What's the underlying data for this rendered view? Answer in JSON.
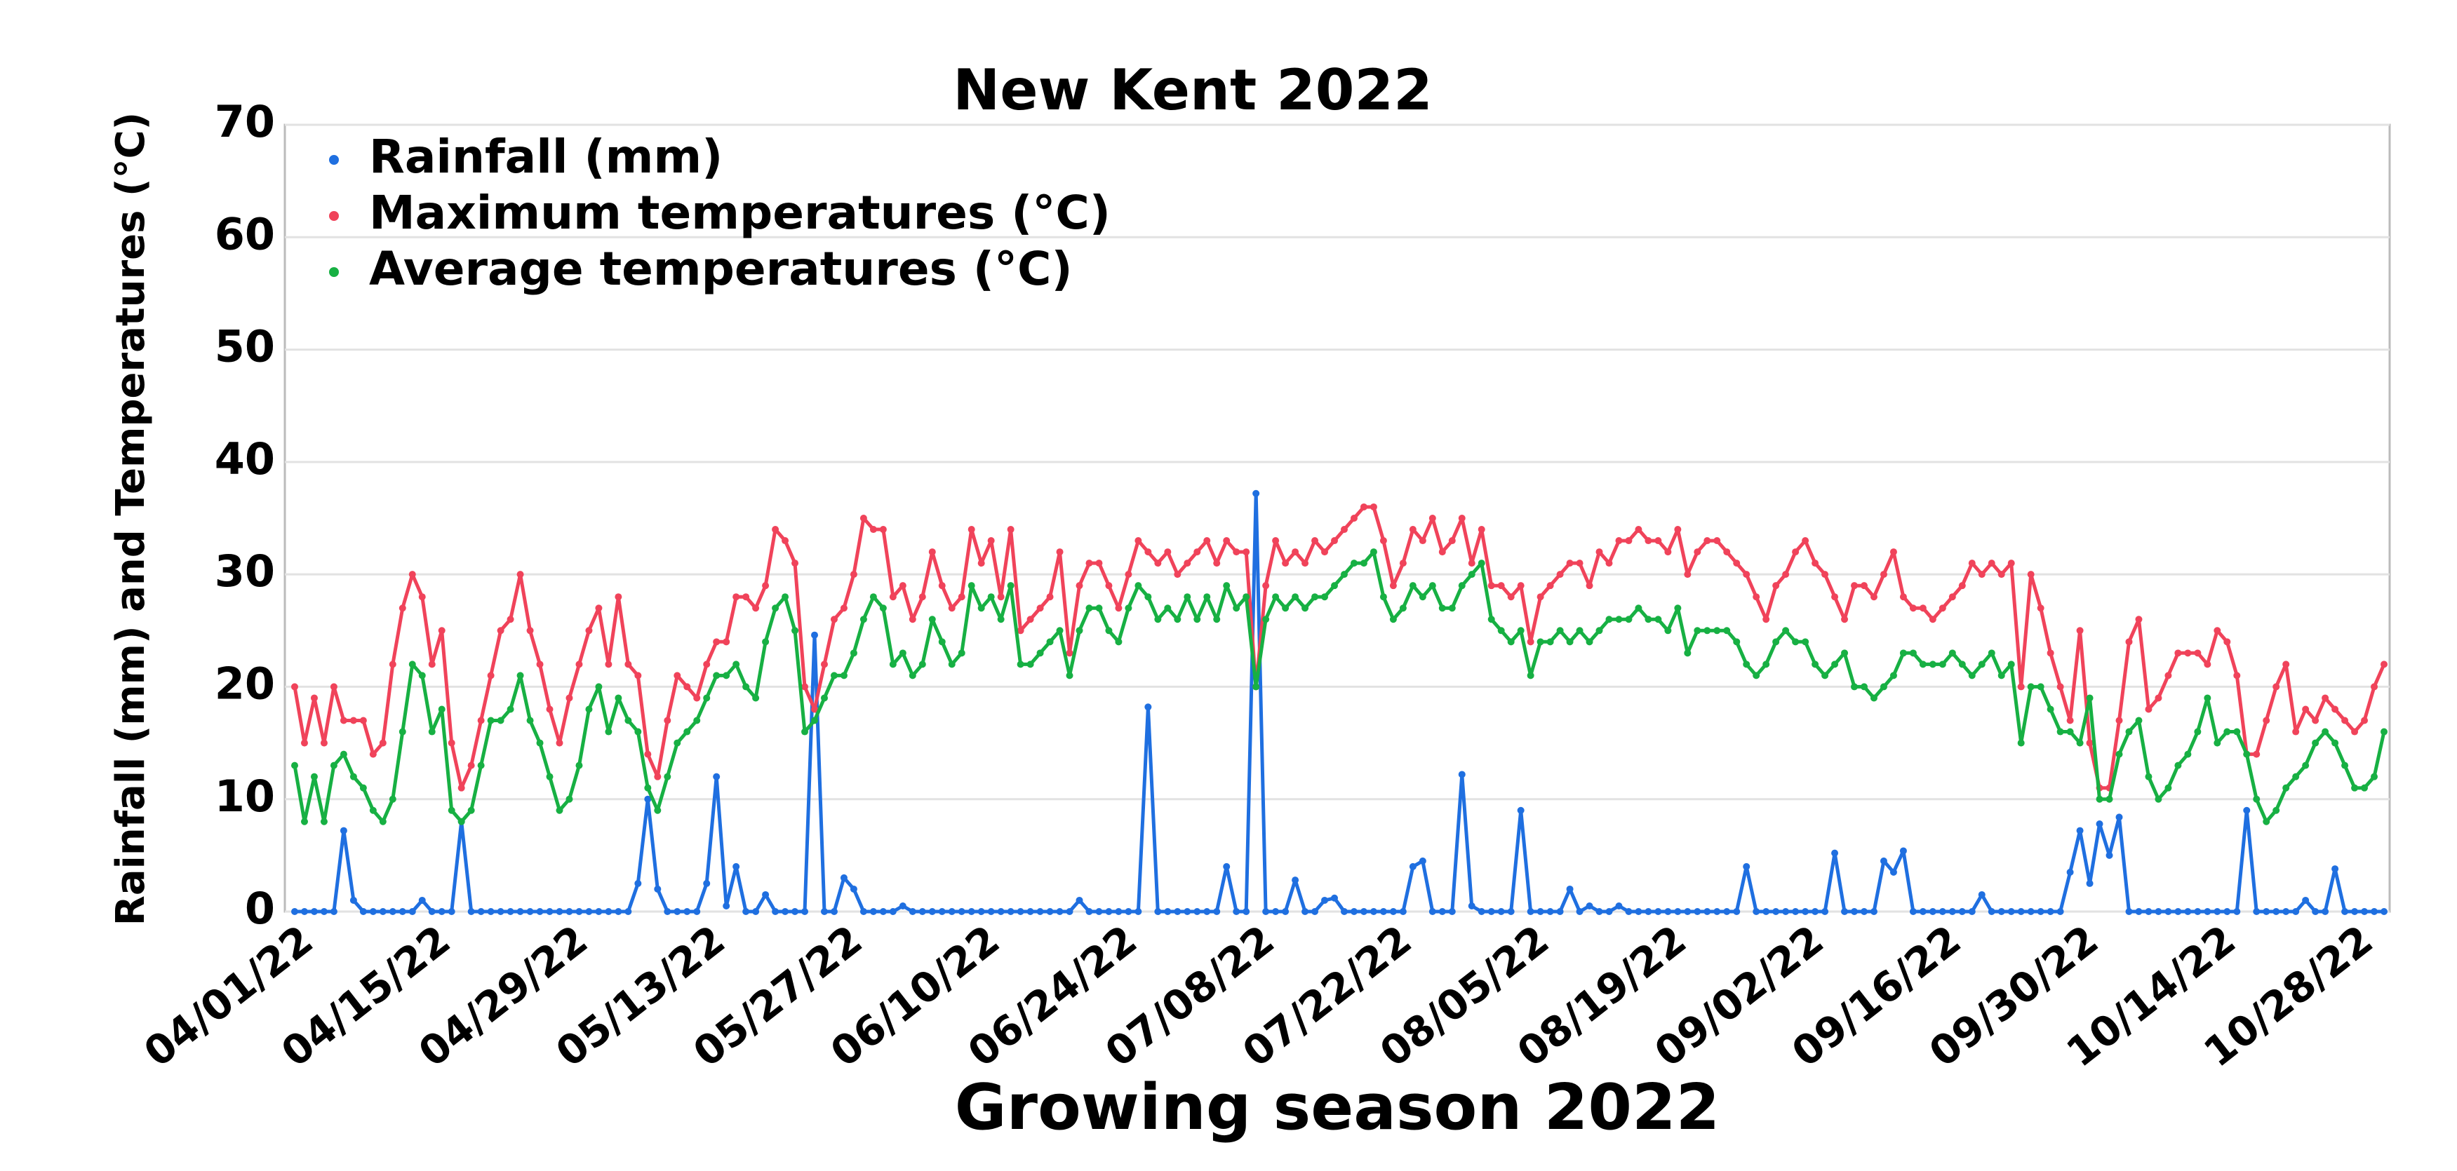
{
  "chart_data": {
    "type": "line",
    "title": "New Kent 2022",
    "x_label": "Growing season 2022",
    "y_label": "Rainfall (mm) and Temperatures (°C)",
    "ylim": [
      0,
      70
    ],
    "yticks": [
      0,
      10,
      20,
      30,
      40,
      50,
      60,
      70
    ],
    "grid": true,
    "legend": "top-left",
    "categories": [
      "04/01/22",
      null,
      null,
      null,
      null,
      null,
      null,
      null,
      null,
      null,
      null,
      null,
      null,
      null,
      "04/15/22",
      null,
      null,
      null,
      null,
      null,
      null,
      null,
      null,
      null,
      null,
      null,
      null,
      null,
      "04/29/22",
      null,
      null,
      null,
      null,
      null,
      null,
      null,
      null,
      null,
      null,
      null,
      null,
      null,
      "05/13/22",
      null,
      null,
      null,
      null,
      null,
      null,
      null,
      null,
      null,
      null,
      null,
      null,
      null,
      "05/27/22",
      null,
      null,
      null,
      null,
      null,
      null,
      null,
      null,
      null,
      null,
      null,
      null,
      null,
      "06/10/22",
      null,
      null,
      null,
      null,
      null,
      null,
      null,
      null,
      null,
      null,
      null,
      null,
      null,
      "06/24/22",
      null,
      null,
      null,
      null,
      null,
      null,
      null,
      null,
      null,
      null,
      null,
      null,
      null,
      "07/08/22",
      null,
      null,
      null,
      null,
      null,
      null,
      null,
      null,
      null,
      null,
      null,
      null,
      null,
      "07/22/22",
      null,
      null,
      null,
      null,
      null,
      null,
      null,
      null,
      null,
      null,
      null,
      null,
      null,
      "08/05/22",
      null,
      null,
      null,
      null,
      null,
      null,
      null,
      null,
      null,
      null,
      null,
      null,
      null,
      "08/19/22",
      null,
      null,
      null,
      null,
      null,
      null,
      null,
      null,
      null,
      null,
      null,
      null,
      null,
      "09/02/22",
      null,
      null,
      null,
      null,
      null,
      null,
      null,
      null,
      null,
      null,
      null,
      null,
      null,
      "09/16/22",
      null,
      null,
      null,
      null,
      null,
      null,
      null,
      null,
      null,
      null,
      null,
      null,
      null,
      "09/30/22",
      null,
      null,
      null,
      null,
      null,
      null,
      null,
      null,
      null,
      null,
      null,
      null,
      null,
      "10/14/22",
      null,
      null,
      null,
      null,
      null,
      null,
      null,
      null,
      null,
      null,
      null,
      null,
      null,
      "10/28/22",
      null,
      null,
      null
    ],
    "series": [
      {
        "name": "Rainfall (mm)",
        "color": "#1f6fe0",
        "values": [
          0,
          0,
          0,
          0,
          0,
          7.2,
          1,
          0,
          0,
          0,
          0,
          0,
          0,
          1,
          0,
          0,
          0,
          8,
          0,
          0,
          0,
          0,
          0,
          0,
          0,
          0,
          0,
          0,
          0,
          0,
          0,
          0,
          0,
          0,
          0,
          2.5,
          10,
          2,
          0,
          0,
          0,
          0,
          2.5,
          12,
          0.5,
          4,
          0,
          0,
          1.5,
          0,
          0,
          0,
          0,
          24.6,
          0,
          0,
          3,
          2,
          0,
          0,
          0,
          0,
          0.5,
          0,
          0,
          0,
          0,
          0,
          0,
          0,
          0,
          0,
          0,
          0,
          0,
          0,
          0,
          0,
          0,
          0,
          1,
          0,
          0,
          0,
          0,
          0,
          0,
          18.2,
          0,
          0,
          0,
          0,
          0,
          0,
          0,
          4,
          0,
          0,
          37.2,
          0,
          0,
          0,
          2.8,
          0,
          0,
          1,
          1.2,
          0,
          0,
          0,
          0,
          0,
          0,
          0,
          4,
          4.5,
          0,
          0,
          0,
          12.2,
          0.5,
          0,
          0,
          0,
          0,
          9,
          0,
          0,
          0,
          0,
          2,
          0,
          0.5,
          0,
          0,
          0.5,
          0,
          0,
          0,
          0,
          0,
          0,
          0,
          0,
          0,
          0,
          0,
          0,
          4,
          0,
          0,
          0,
          0,
          0,
          0,
          0,
          0,
          5.2,
          0,
          0,
          0,
          0,
          4.5,
          3.5,
          5.4,
          0,
          0,
          0,
          0,
          0,
          0,
          0,
          1.5,
          0,
          0,
          0,
          0,
          0,
          0,
          0,
          0,
          3.5,
          7.2,
          2.5,
          7.8,
          5,
          8.4,
          0,
          0,
          0,
          0,
          0,
          0,
          0,
          0,
          0,
          0,
          0,
          0,
          9,
          0,
          0,
          0,
          0,
          0,
          1,
          0,
          0,
          3.8,
          0,
          0,
          0,
          0,
          0
        ]
      },
      {
        "name": "Maximum temperatures (°C)",
        "color": "#f0435a",
        "values": [
          20,
          15,
          19,
          15,
          20,
          17,
          17,
          17,
          14,
          15,
          22,
          27,
          30,
          28,
          22,
          25,
          15,
          11,
          13,
          17,
          21,
          25,
          26,
          30,
          25,
          22,
          18,
          15,
          19,
          22,
          25,
          27,
          22,
          28,
          22,
          21,
          14,
          12,
          17,
          21,
          20,
          19,
          22,
          24,
          24,
          28,
          28,
          27,
          29,
          34,
          33,
          31,
          20,
          18,
          22,
          26,
          27,
          30,
          35,
          34,
          34,
          28,
          29,
          26,
          28,
          32,
          29,
          27,
          28,
          34,
          31,
          33,
          28,
          34,
          25,
          26,
          27,
          28,
          32,
          23,
          29,
          31,
          31,
          29,
          27,
          30,
          33,
          32,
          31,
          32,
          30,
          31,
          32,
          33,
          31,
          33,
          32,
          32,
          20,
          29,
          33,
          31,
          32,
          31,
          33,
          32,
          33,
          34,
          35,
          36,
          36,
          33,
          29,
          31,
          34,
          33,
          35,
          32,
          33,
          35,
          31,
          34,
          29,
          29,
          28,
          29,
          24,
          28,
          29,
          30,
          31,
          31,
          29,
          32,
          31,
          33,
          33,
          34,
          33,
          33,
          32,
          34,
          30,
          32,
          33,
          33,
          32,
          31,
          30,
          28,
          26,
          29,
          30,
          32,
          33,
          31,
          30,
          28,
          26,
          29,
          29,
          28,
          30,
          32,
          28,
          27,
          27,
          26,
          27,
          28,
          29,
          31,
          30,
          31,
          30,
          31,
          20,
          30,
          27,
          23,
          20,
          17,
          25,
          15,
          11,
          11,
          17,
          24,
          26,
          18,
          19,
          21,
          23,
          23,
          23,
          22,
          25,
          24,
          21,
          14,
          14,
          17,
          20,
          22,
          16,
          18,
          17,
          19,
          18,
          17,
          16,
          17,
          20,
          22
        ]
      },
      {
        "name": "Average temperatures (°C)",
        "color": "#17b043",
        "values": [
          13,
          8,
          12,
          8,
          13,
          14,
          12,
          11,
          9,
          8,
          10,
          16,
          22,
          21,
          16,
          18,
          9,
          8,
          9,
          13,
          17,
          17,
          18,
          21,
          17,
          15,
          12,
          9,
          10,
          13,
          18,
          20,
          16,
          19,
          17,
          16,
          11,
          9,
          12,
          15,
          16,
          17,
          19,
          21,
          21,
          22,
          20,
          19,
          24,
          27,
          28,
          25,
          16,
          17,
          19,
          21,
          21,
          23,
          26,
          28,
          27,
          22,
          23,
          21,
          22,
          26,
          24,
          22,
          23,
          29,
          27,
          28,
          26,
          29,
          22,
          22,
          23,
          24,
          25,
          21,
          25,
          27,
          27,
          25,
          24,
          27,
          29,
          28,
          26,
          27,
          26,
          28,
          26,
          28,
          26,
          29,
          27,
          28,
          20,
          26,
          28,
          27,
          28,
          27,
          28,
          28,
          29,
          30,
          31,
          31,
          32,
          28,
          26,
          27,
          29,
          28,
          29,
          27,
          27,
          29,
          30,
          31,
          26,
          25,
          24,
          25,
          21,
          24,
          24,
          25,
          24,
          25,
          24,
          25,
          26,
          26,
          26,
          27,
          26,
          26,
          25,
          27,
          23,
          25,
          25,
          25,
          25,
          24,
          22,
          21,
          22,
          24,
          25,
          24,
          24,
          22,
          21,
          22,
          23,
          20,
          20,
          19,
          20,
          21,
          23,
          23,
          22,
          22,
          22,
          23,
          22,
          21,
          22,
          23,
          21,
          22,
          15,
          20,
          20,
          18,
          16,
          16,
          15,
          19,
          10,
          10,
          14,
          16,
          17,
          12,
          10,
          11,
          13,
          14,
          16,
          19,
          15,
          16,
          16,
          14,
          10,
          8,
          9,
          11,
          12,
          13,
          15,
          16,
          15,
          13,
          11,
          11,
          12,
          16
        ]
      }
    ]
  }
}
